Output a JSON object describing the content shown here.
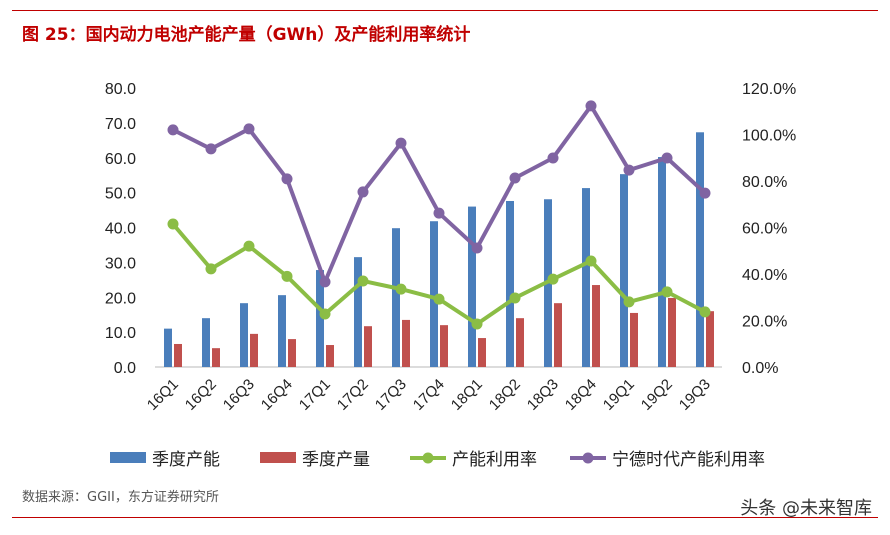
{
  "title": "图 25：国内动力电池产能产量（GWh）及产能利用率统计",
  "source": "数据来源：GGII，东方证券研究所",
  "watermark": "头条 @未来智库",
  "colors": {
    "title": "#c00000",
    "capacity": "#4a7ebb",
    "output": "#c0504d",
    "utilization": "#8bbd45",
    "catl_utilization": "#8064a2"
  },
  "chart_data": {
    "type": "bar+line",
    "categories": [
      "16Q1",
      "16Q2",
      "16Q3",
      "16Q4",
      "17Q1",
      "17Q2",
      "17Q3",
      "17Q4",
      "18Q1",
      "18Q2",
      "18Q3",
      "18Q4",
      "19Q1",
      "19Q2",
      "19Q3"
    ],
    "y_left": {
      "range": [
        0,
        80
      ],
      "ticks": [
        "0.0",
        "10.0",
        "20.0",
        "30.0",
        "40.0",
        "50.0",
        "60.0",
        "70.0",
        "80.0"
      ]
    },
    "y_right": {
      "range": [
        0,
        120
      ],
      "ticks": [
        "0.0%",
        "20.0%",
        "40.0%",
        "60.0%",
        "80.0%",
        "100.0%",
        "120.0%"
      ]
    },
    "grid": false,
    "legend_position": "bottom",
    "series": [
      {
        "name": "季度产能",
        "type": "bar",
        "axis": "left",
        "values": [
          11,
          14,
          18.3,
          20.6,
          27.8,
          31.5,
          39.8,
          41.8,
          46,
          47.6,
          48.1,
          51.3,
          55.3,
          60.2,
          67.3
        ]
      },
      {
        "name": "季度产量",
        "type": "bar",
        "axis": "left",
        "values": [
          6.6,
          5.4,
          9.5,
          8,
          6.3,
          11.7,
          13.5,
          12,
          8.3,
          14,
          18.3,
          23.5,
          15.5,
          19.8,
          16
        ]
      },
      {
        "name": "产能利用率",
        "type": "line",
        "axis": "right",
        "values": [
          61.5,
          42.2,
          52,
          39,
          22.8,
          37,
          33.5,
          29.2,
          18.5,
          29.7,
          37.8,
          45.6,
          28,
          32.3,
          23.7
        ]
      },
      {
        "name": "宁德时代产能利用率",
        "type": "line",
        "axis": "right",
        "values": [
          102,
          93.8,
          102.4,
          80.9,
          36.6,
          75.3,
          96.3,
          66.2,
          51.2,
          81.3,
          89.9,
          112.3,
          84.7,
          89.9,
          74.8
        ]
      }
    ]
  }
}
